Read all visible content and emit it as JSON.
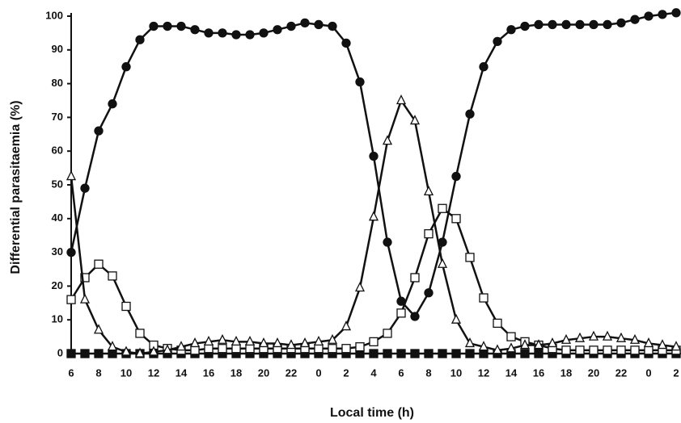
{
  "chart_data": {
    "type": "line",
    "xlabel": "Local time (h)",
    "ylabel": "Differential parasitaemia (%)",
    "categories": [
      "6",
      null,
      "8",
      null,
      "10",
      null,
      "12",
      null,
      "14",
      null,
      "16",
      null,
      "18",
      null,
      "20",
      null,
      "22",
      null,
      "0",
      null,
      "2",
      null,
      "4",
      null,
      "6",
      null,
      "8",
      null,
      "10",
      null,
      "12",
      null,
      "14",
      null,
      "16",
      null,
      "18",
      null,
      "20",
      null,
      "22",
      null,
      "0",
      null,
      "2"
    ],
    "ylim": [
      0,
      100
    ],
    "yticks": [
      0,
      10,
      20,
      30,
      40,
      50,
      60,
      70,
      80,
      90,
      100
    ],
    "series": [
      {
        "color": "#111111",
        "marker": "circle",
        "filled": true,
        "values": [
          30,
          49,
          66,
          74,
          85,
          93,
          97,
          97,
          97,
          96,
          95,
          95,
          94.5,
          94.5,
          95,
          96,
          97,
          98,
          97.5,
          97,
          92,
          80.5,
          58.5,
          33,
          15.5,
          11,
          18,
          33,
          52.5,
          71,
          85,
          92.5,
          96,
          97,
          97.5,
          97.5,
          97.5,
          97.5,
          97.5,
          97.5,
          98,
          99,
          100,
          100.5,
          101
        ]
      },
      {
        "color": "#111111",
        "marker": "triangle",
        "filled": false,
        "values": [
          52.5,
          16,
          7,
          2,
          0.5,
          0,
          0.5,
          1,
          2,
          3,
          3.5,
          4,
          3.5,
          3.5,
          3,
          3,
          2.5,
          3,
          3.5,
          4,
          8,
          19.5,
          40.5,
          63,
          75,
          69,
          48,
          26.5,
          10,
          3,
          2,
          1,
          1.5,
          2.5,
          2.5,
          3,
          4,
          4.5,
          5,
          5,
          4.5,
          4,
          3,
          2.5,
          2
        ]
      },
      {
        "color": "#111111",
        "marker": "square",
        "filled": false,
        "values": [
          16,
          22.5,
          26.5,
          23,
          14,
          6,
          2.5,
          1.5,
          1,
          1,
          1.5,
          1.5,
          1.5,
          1.5,
          1.5,
          1.5,
          1.5,
          1.5,
          1.5,
          1.5,
          1.5,
          2,
          3.5,
          6,
          12,
          22.5,
          35.5,
          43,
          40,
          28.5,
          16.5,
          9,
          5,
          3.5,
          2.5,
          1.5,
          1,
          1,
          1,
          1,
          1,
          1,
          1,
          1,
          1
        ]
      },
      {
        "color": "#111111",
        "marker": "square",
        "filled": true,
        "values": [
          0,
          0,
          0,
          0,
          0,
          0,
          0,
          0,
          0,
          0,
          0,
          0,
          0,
          0,
          0,
          0,
          0,
          0,
          0,
          0,
          0,
          0,
          0,
          0,
          0,
          0,
          0,
          0,
          0,
          0,
          0,
          0,
          0,
          0,
          0,
          0,
          0,
          0,
          0,
          0,
          0,
          0,
          0,
          0,
          0
        ]
      }
    ]
  }
}
